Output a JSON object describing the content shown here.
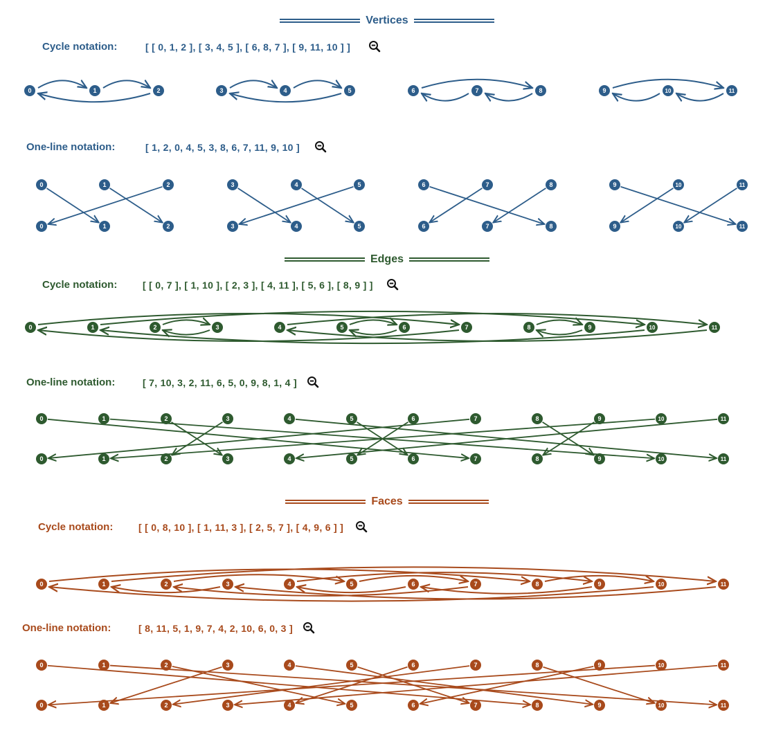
{
  "sections": [
    {
      "key": "vertices",
      "title": "Vertices",
      "color": "#2d5d8a",
      "cycle_label": "Cycle notation:",
      "cycle_text": "[ [ 0, 1, 2 ], [ 3, 4, 5 ], [ 6, 8, 7 ], [ 9, 11, 10 ] ]",
      "oneline_label": "One-line notation:",
      "oneline_text": "[ 1, 2, 0, 4, 5, 3, 8, 6, 7, 11, 9, 10 ]",
      "layout": "grouped",
      "cycles": [
        [
          0,
          1,
          2
        ],
        [
          3,
          4,
          5
        ],
        [
          6,
          8,
          7
        ],
        [
          9,
          11,
          10
        ]
      ],
      "permutation": [
        1,
        2,
        0,
        4,
        5,
        3,
        8,
        6,
        7,
        11,
        9,
        10
      ]
    },
    {
      "key": "edges",
      "title": "Edges",
      "color": "#2e5a2f",
      "cycle_label": "Cycle notation:",
      "cycle_text": "[ [ 0, 7 ], [ 1, 10 ], [ 2, 3 ], [ 4, 11 ], [ 5, 6 ], [ 8, 9 ] ]",
      "oneline_label": "One-line notation:",
      "oneline_text": "[ 7, 10, 3, 2, 11, 6, 5, 0, 9, 8, 1, 4 ]",
      "layout": "line",
      "cycles": [
        [
          0,
          7
        ],
        [
          1,
          10
        ],
        [
          2,
          3
        ],
        [
          4,
          11
        ],
        [
          5,
          6
        ],
        [
          8,
          9
        ]
      ],
      "permutation": [
        7,
        10,
        3,
        2,
        11,
        6,
        5,
        0,
        9,
        8,
        1,
        4
      ]
    },
    {
      "key": "faces",
      "title": "Faces",
      "color": "#a84a1c",
      "cycle_label": "Cycle notation:",
      "cycle_text": "[ [ 0, 8, 10 ], [ 1, 11, 3 ], [ 2, 5, 7 ], [ 4, 9, 6 ] ]",
      "oneline_label": "One-line notation:",
      "oneline_text": "[ 8, 11, 5, 1, 9, 7, 4, 2, 10, 6, 0, 3 ]",
      "layout": "line",
      "cycles": [
        [
          0,
          8,
          10
        ],
        [
          1,
          11,
          3
        ],
        [
          2,
          5,
          7
        ],
        [
          4,
          9,
          6
        ]
      ],
      "permutation": [
        8,
        11,
        5,
        1,
        9,
        7,
        4,
        2,
        10,
        6,
        0,
        3
      ]
    }
  ],
  "icons": {
    "zoom": "zoom-out-icon"
  }
}
